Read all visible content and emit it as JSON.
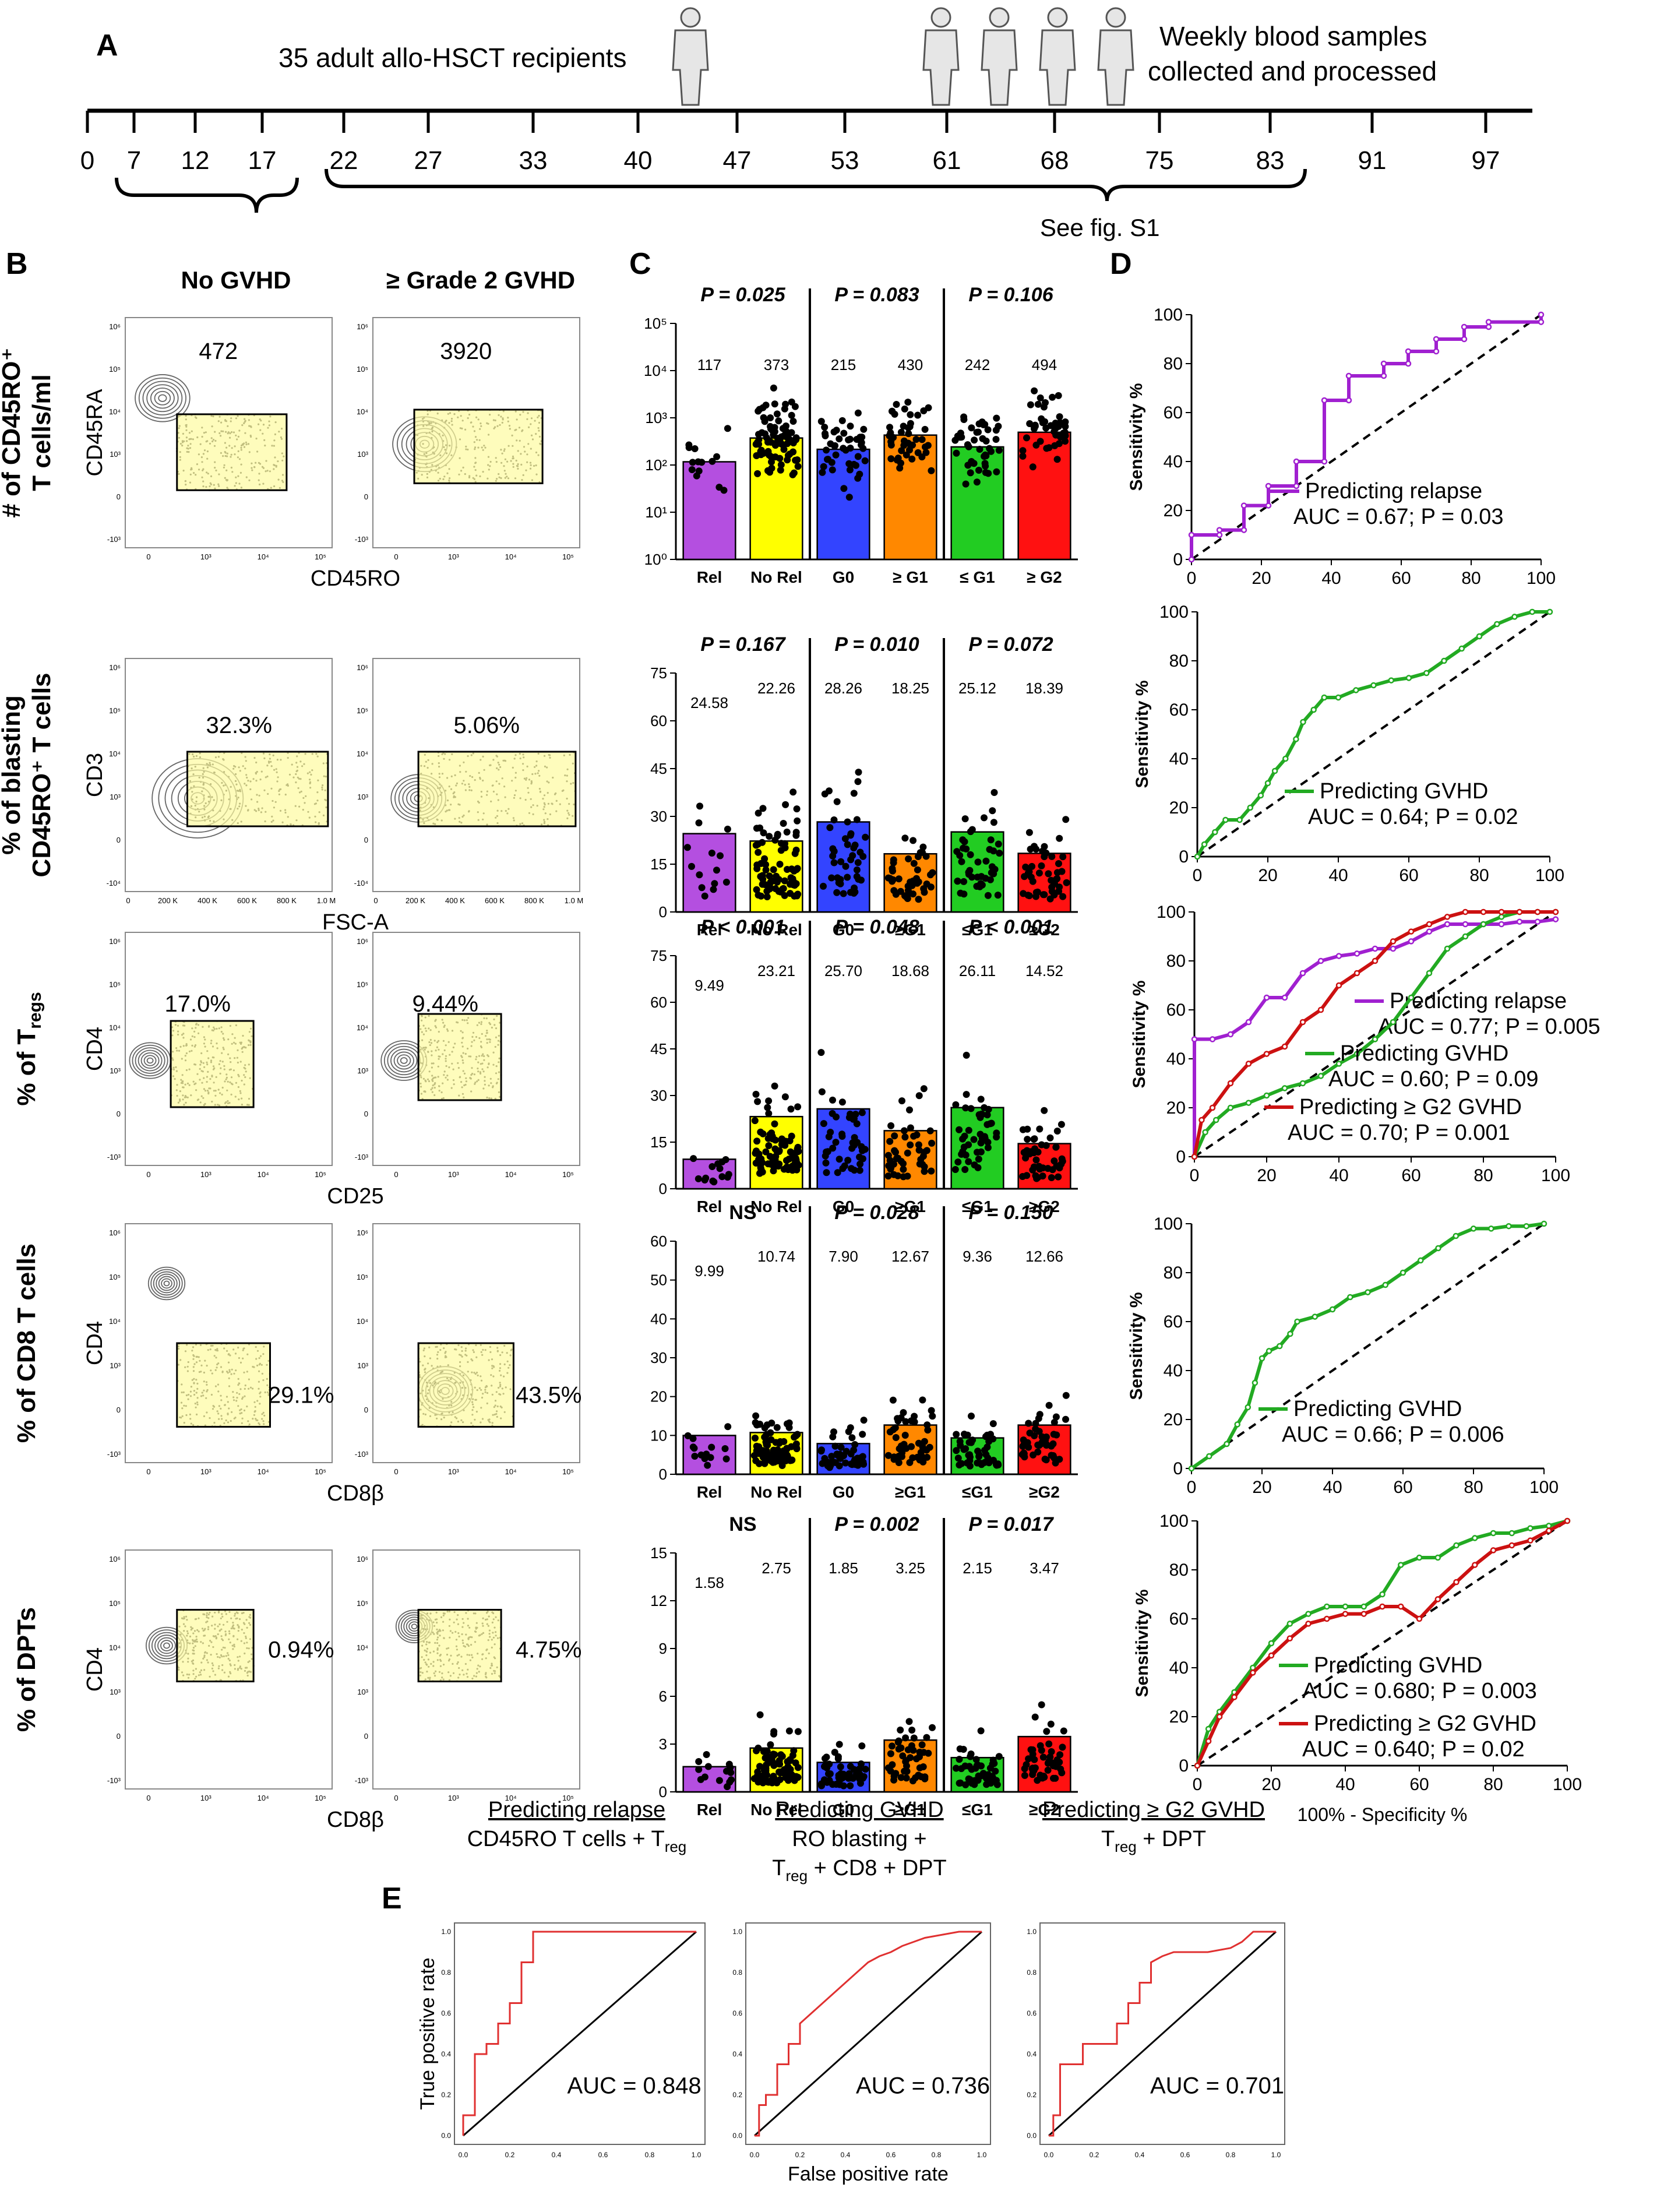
{
  "panel_letters": {
    "a": "A",
    "b": "B",
    "c": "C",
    "d": "D",
    "e": "E"
  },
  "timeline": {
    "recipients": "35 adult allo-HSCT recipients",
    "samples_line1": "Weekly blood samples",
    "samples_line2": "collected and processed",
    "days": [
      "0",
      "7",
      "12",
      "17",
      "22",
      "27",
      "33",
      "40",
      "47",
      "53",
      "61",
      "68",
      "75",
      "83",
      "91",
      "97"
    ],
    "see_fig": "See fig. S1"
  },
  "flow": {
    "col_no_gvhd": "No GVHD",
    "col_grade2": "≥ Grade 2 GVHD",
    "rows": [
      {
        "row_title_1": "# of CD45RO⁺",
        "row_title_2": "T cells/ml",
        "y_axis": "CD45RA",
        "x_axis": "CD45RO",
        "value_left": "472",
        "value_right": "3920"
      },
      {
        "row_title_1": "% of blasting",
        "row_title_2": "CD45RO⁺ T cells",
        "y_axis": "CD3",
        "x_axis": "FSC-A",
        "value_left": "32.3%",
        "value_right": "5.06%"
      },
      {
        "row_title_1": "% of T",
        "row_title_sub": "regs",
        "y_axis": "CD4",
        "x_axis": "CD25",
        "value_left": "17.0%",
        "value_right": "9.44%"
      },
      {
        "row_title_1": "% of CD8 T cells",
        "y_axis": "CD4",
        "x_axis": "CD8β",
        "value_left": "29.1%",
        "value_right": "43.5%"
      },
      {
        "row_title_1": "% of DPTs",
        "y_axis": "CD4",
        "x_axis": "CD8β",
        "value_left": "0.94%",
        "value_right": "4.75%"
      }
    ],
    "log_ticks": [
      "10⁶",
      "10⁵",
      "10⁴",
      "10³",
      "0",
      "-10³"
    ],
    "log_ticks_x": [
      "0",
      "10³",
      "10⁴",
      "10⁵"
    ],
    "fsc_ticks": [
      "0",
      "200 K",
      "400 K",
      "600 K",
      "800 K",
      "1.0 M"
    ]
  },
  "chart_data": [
    {
      "type": "bar",
      "panel": "C-1",
      "categories": [
        "Rel",
        "No Rel",
        "G0",
        "≥ G1",
        "≤ G1",
        "≥ G2"
      ],
      "values": [
        117,
        373,
        215,
        430,
        242,
        494
      ],
      "value_labels": [
        "117",
        "373",
        "215",
        "430",
        "242",
        "494"
      ],
      "yscale": "log",
      "ylim": [
        1,
        100000
      ],
      "yticks": [
        "10⁰",
        "10¹",
        "10²",
        "10³",
        "10⁴",
        "10⁵"
      ],
      "pvalues": [
        "P = 0.025",
        "P = 0.083",
        "P = 0.106"
      ],
      "colors": [
        "#b44fe0",
        "#ffff00",
        "#3344ff",
        "#ff8800",
        "#22cc22",
        "#ff1111"
      ]
    },
    {
      "type": "bar",
      "panel": "C-2",
      "categories": [
        "Rel",
        "No Rel",
        "G0",
        "≥G1",
        "≤G1",
        "≥G2"
      ],
      "values": [
        24.58,
        22.26,
        28.26,
        18.25,
        25.12,
        18.39
      ],
      "value_labels": [
        "24.58",
        "22.26",
        "28.26",
        "18.25",
        "25.12",
        "18.39"
      ],
      "ylim": [
        0,
        75
      ],
      "yticks": [
        "0",
        "15",
        "30",
        "45",
        "60",
        "75"
      ],
      "pvalues": [
        "P = 0.167",
        "P = 0.010",
        "P = 0.072"
      ],
      "colors": [
        "#b44fe0",
        "#ffff00",
        "#3344ff",
        "#ff8800",
        "#22cc22",
        "#ff1111"
      ]
    },
    {
      "type": "bar",
      "panel": "C-3",
      "categories": [
        "Rel",
        "No Rel",
        "G0",
        "≥G1",
        "≤G1",
        "≥G2"
      ],
      "values": [
        9.49,
        23.21,
        25.7,
        18.68,
        26.11,
        14.52
      ],
      "value_labels": [
        "9.49",
        "23.21",
        "25.70",
        "18.68",
        "26.11",
        "14.52"
      ],
      "ylim": [
        0,
        75
      ],
      "yticks": [
        "0",
        "15",
        "30",
        "45",
        "60",
        "75"
      ],
      "pvalues": [
        "P < 0.001",
        "P = 0.048",
        "P < 0.001"
      ],
      "colors": [
        "#b44fe0",
        "#ffff00",
        "#3344ff",
        "#ff8800",
        "#22cc22",
        "#ff1111"
      ]
    },
    {
      "type": "bar",
      "panel": "C-4",
      "categories": [
        "Rel",
        "No Rel",
        "G0",
        "≥G1",
        "≤G1",
        "≥G2"
      ],
      "values": [
        9.99,
        10.74,
        7.9,
        12.67,
        9.36,
        12.66
      ],
      "value_labels": [
        "9.99",
        "10.74",
        "7.90",
        "12.67",
        "9.36",
        "12.66"
      ],
      "ylim": [
        0,
        60
      ],
      "yticks": [
        "0",
        "10",
        "20",
        "30",
        "40",
        "50",
        "60"
      ],
      "pvalues": [
        "NS",
        "P = 0.028",
        "P = 0.150"
      ],
      "colors": [
        "#b44fe0",
        "#ffff00",
        "#3344ff",
        "#ff8800",
        "#22cc22",
        "#ff1111"
      ]
    },
    {
      "type": "bar",
      "panel": "C-5",
      "categories": [
        "Rel",
        "No Rel",
        "G0",
        "≥G1",
        "≤G1",
        "≥G2"
      ],
      "values": [
        1.58,
        2.75,
        1.85,
        3.25,
        2.15,
        3.47
      ],
      "value_labels": [
        "1.58",
        "2.75",
        "1.85",
        "3.25",
        "2.15",
        "3.47"
      ],
      "ylim": [
        0,
        15
      ],
      "yticks": [
        "0",
        "3",
        "6",
        "9",
        "12",
        "15"
      ],
      "pvalues": [
        "NS",
        "P = 0.002",
        "P = 0.017"
      ],
      "colors": [
        "#b44fe0",
        "#ffff00",
        "#3344ff",
        "#ff8800",
        "#22cc22",
        "#ff1111"
      ]
    },
    {
      "type": "line",
      "panel": "D-1",
      "xlabel": "",
      "ylabel": "Sensitivity %",
      "xlim": [
        0,
        100
      ],
      "ylim": [
        0,
        100
      ],
      "series": [
        {
          "name": "Predicting relapse",
          "auc": "AUC = 0.67; P = 0.03",
          "color": "#a020d0",
          "x": [
            0,
            0,
            8,
            8,
            15,
            15,
            22,
            22,
            30,
            30,
            38,
            38,
            45,
            45,
            55,
            55,
            62,
            62,
            70,
            70,
            78,
            78,
            85,
            85,
            100,
            100
          ],
          "y": [
            0,
            10,
            10,
            12,
            12,
            22,
            22,
            30,
            30,
            40,
            40,
            65,
            65,
            75,
            75,
            80,
            80,
            85,
            85,
            90,
            90,
            95,
            95,
            97,
            97,
            100
          ]
        }
      ]
    },
    {
      "type": "line",
      "panel": "D-2",
      "ylabel": "Sensitivity %",
      "xlim": [
        0,
        100
      ],
      "ylim": [
        0,
        100
      ],
      "series": [
        {
          "name": "Predicting GVHD",
          "auc": "AUC = 0.64; P = 0.02",
          "color": "#22aa22",
          "x": [
            0,
            2,
            5,
            8,
            12,
            15,
            18,
            20,
            22,
            25,
            28,
            30,
            33,
            36,
            40,
            45,
            50,
            55,
            60,
            65,
            70,
            75,
            80,
            85,
            90,
            95,
            100
          ],
          "y": [
            0,
            5,
            10,
            15,
            15,
            20,
            25,
            30,
            35,
            40,
            48,
            55,
            60,
            65,
            65,
            68,
            70,
            72,
            73,
            75,
            80,
            85,
            90,
            95,
            98,
            100,
            100
          ]
        }
      ]
    },
    {
      "type": "line",
      "panel": "D-3",
      "ylabel": "Sensitivity %",
      "xlim": [
        0,
        100
      ],
      "ylim": [
        0,
        100
      ],
      "series": [
        {
          "name": "Predicting relapse",
          "auc": "AUC = 0.77; P = 0.005",
          "color": "#a020d0",
          "x": [
            0,
            0,
            5,
            10,
            15,
            20,
            25,
            30,
            35,
            40,
            45,
            50,
            55,
            60,
            65,
            70,
            75,
            80,
            85,
            90,
            95,
            100
          ],
          "y": [
            0,
            48,
            48,
            50,
            55,
            65,
            65,
            75,
            80,
            82,
            83,
            85,
            85,
            88,
            92,
            95,
            95,
            95,
            95,
            96,
            96,
            97
          ]
        },
        {
          "name": "Predicting GVHD",
          "auc": "AUC = 0.60; P = 0.09",
          "color": "#22aa22",
          "x": [
            0,
            3,
            6,
            10,
            15,
            20,
            25,
            30,
            35,
            40,
            45,
            50,
            55,
            60,
            65,
            70,
            75,
            80,
            85,
            90,
            95,
            100
          ],
          "y": [
            0,
            10,
            15,
            20,
            22,
            25,
            28,
            30,
            33,
            38,
            42,
            48,
            55,
            65,
            75,
            85,
            90,
            95,
            98,
            100,
            100,
            100
          ]
        },
        {
          "name": "Predicting ≥ G2 GVHD",
          "auc": "AUC = 0.70; P = 0.001",
          "color": "#cc1111",
          "x": [
            0,
            2,
            5,
            10,
            15,
            20,
            25,
            30,
            35,
            40,
            45,
            50,
            55,
            60,
            65,
            70,
            75,
            80,
            85,
            90,
            95,
            100
          ],
          "y": [
            0,
            15,
            20,
            30,
            38,
            42,
            45,
            55,
            60,
            70,
            75,
            80,
            88,
            92,
            95,
            98,
            100,
            100,
            100,
            100,
            100,
            100
          ]
        }
      ]
    },
    {
      "type": "line",
      "panel": "D-4",
      "ylabel": "Sensitivity %",
      "xlim": [
        0,
        100
      ],
      "ylim": [
        0,
        100
      ],
      "series": [
        {
          "name": "Predicting GVHD",
          "auc": "AUC = 0.66; P = 0.006",
          "color": "#22aa22",
          "x": [
            0,
            5,
            10,
            13,
            16,
            18,
            20,
            22,
            25,
            28,
            30,
            35,
            40,
            45,
            50,
            55,
            60,
            65,
            70,
            75,
            80,
            85,
            90,
            95,
            100
          ],
          "y": [
            0,
            5,
            10,
            18,
            25,
            35,
            45,
            48,
            50,
            55,
            60,
            62,
            65,
            70,
            72,
            75,
            80,
            85,
            90,
            95,
            98,
            98,
            99,
            99,
            100
          ]
        }
      ]
    },
    {
      "type": "line",
      "panel": "D-5",
      "xlabel": "100% - Specificity %",
      "ylabel": "Sensitivity %",
      "xlim": [
        0,
        100
      ],
      "ylim": [
        0,
        100
      ],
      "series": [
        {
          "name": "Predicting GVHD",
          "auc": "AUC = 0.680; P = 0.003",
          "color": "#22aa22",
          "x": [
            0,
            3,
            6,
            10,
            15,
            20,
            25,
            30,
            35,
            40,
            45,
            50,
            55,
            60,
            65,
            70,
            75,
            80,
            85,
            90,
            95,
            100
          ],
          "y": [
            0,
            15,
            22,
            30,
            40,
            50,
            58,
            62,
            65,
            65,
            65,
            70,
            82,
            85,
            85,
            90,
            93,
            95,
            95,
            97,
            98,
            100
          ]
        },
        {
          "name": "Predicting ≥ G2 GVHD",
          "auc": "AUC = 0.640; P = 0.02",
          "color": "#cc1111",
          "x": [
            0,
            3,
            6,
            10,
            15,
            20,
            25,
            30,
            35,
            40,
            45,
            50,
            55,
            60,
            65,
            70,
            75,
            80,
            85,
            90,
            95,
            100
          ],
          "y": [
            0,
            10,
            20,
            28,
            38,
            45,
            52,
            58,
            60,
            62,
            62,
            65,
            65,
            60,
            68,
            75,
            82,
            88,
            90,
            92,
            96,
            100
          ]
        }
      ]
    },
    {
      "type": "line",
      "panel": "E-1",
      "title_1": "Predicting relapse",
      "title_2": "CD45RO T cells + T",
      "title_2_sub": "reg",
      "auc": "AUC = 0.848",
      "ylabel": "True positive rate",
      "xlim": [
        0,
        1
      ],
      "ylim": [
        0,
        1
      ],
      "series": [
        {
          "color": "#e03030",
          "x": [
            0,
            0,
            0.05,
            0.05,
            0.1,
            0.1,
            0.15,
            0.15,
            0.2,
            0.2,
            0.25,
            0.25,
            0.3,
            0.3,
            0.35,
            0.35,
            1
          ],
          "y": [
            0,
            0.1,
            0.1,
            0.4,
            0.4,
            0.45,
            0.45,
            0.55,
            0.55,
            0.65,
            0.65,
            0.85,
            0.85,
            1,
            1,
            1,
            1
          ]
        }
      ]
    },
    {
      "type": "line",
      "panel": "E-2",
      "title_1": "Predicting GVHD",
      "title_2": "RO blasting +",
      "title_3": "T",
      "title_3_sub": "reg",
      "title_3_rest": " + CD8 + DPT",
      "auc": "AUC = 0.736",
      "xlabel": "False positive rate",
      "xlim": [
        0,
        1
      ],
      "ylim": [
        0,
        1
      ],
      "series": [
        {
          "color": "#e03030",
          "x": [
            0,
            0.02,
            0.02,
            0.05,
            0.05,
            0.1,
            0.1,
            0.15,
            0.15,
            0.2,
            0.2,
            0.25,
            0.3,
            0.35,
            0.4,
            0.45,
            0.5,
            0.55,
            0.6,
            0.65,
            0.7,
            0.75,
            0.8,
            0.9,
            1
          ],
          "y": [
            0,
            0,
            0.15,
            0.15,
            0.2,
            0.2,
            0.35,
            0.35,
            0.45,
            0.45,
            0.55,
            0.6,
            0.65,
            0.7,
            0.75,
            0.8,
            0.85,
            0.88,
            0.9,
            0.93,
            0.95,
            0.97,
            0.98,
            1,
            1
          ]
        }
      ]
    },
    {
      "type": "line",
      "panel": "E-3",
      "title_1": "Predicting ≥ G2 GVHD",
      "title_2": "T",
      "title_2_sub": "reg",
      "title_2_rest": " + DPT",
      "auc": "AUC = 0.701",
      "xlim": [
        0,
        1
      ],
      "ylim": [
        0,
        1
      ],
      "series": [
        {
          "color": "#e03030",
          "x": [
            0,
            0.02,
            0.02,
            0.05,
            0.05,
            0.15,
            0.15,
            0.3,
            0.3,
            0.35,
            0.35,
            0.4,
            0.4,
            0.45,
            0.45,
            0.5,
            0.55,
            0.7,
            0.8,
            0.85,
            0.9,
            1
          ],
          "y": [
            0,
            0,
            0.1,
            0.1,
            0.35,
            0.35,
            0.45,
            0.45,
            0.55,
            0.55,
            0.65,
            0.65,
            0.75,
            0.75,
            0.85,
            0.88,
            0.9,
            0.9,
            0.92,
            0.95,
            1,
            1
          ]
        }
      ]
    }
  ]
}
